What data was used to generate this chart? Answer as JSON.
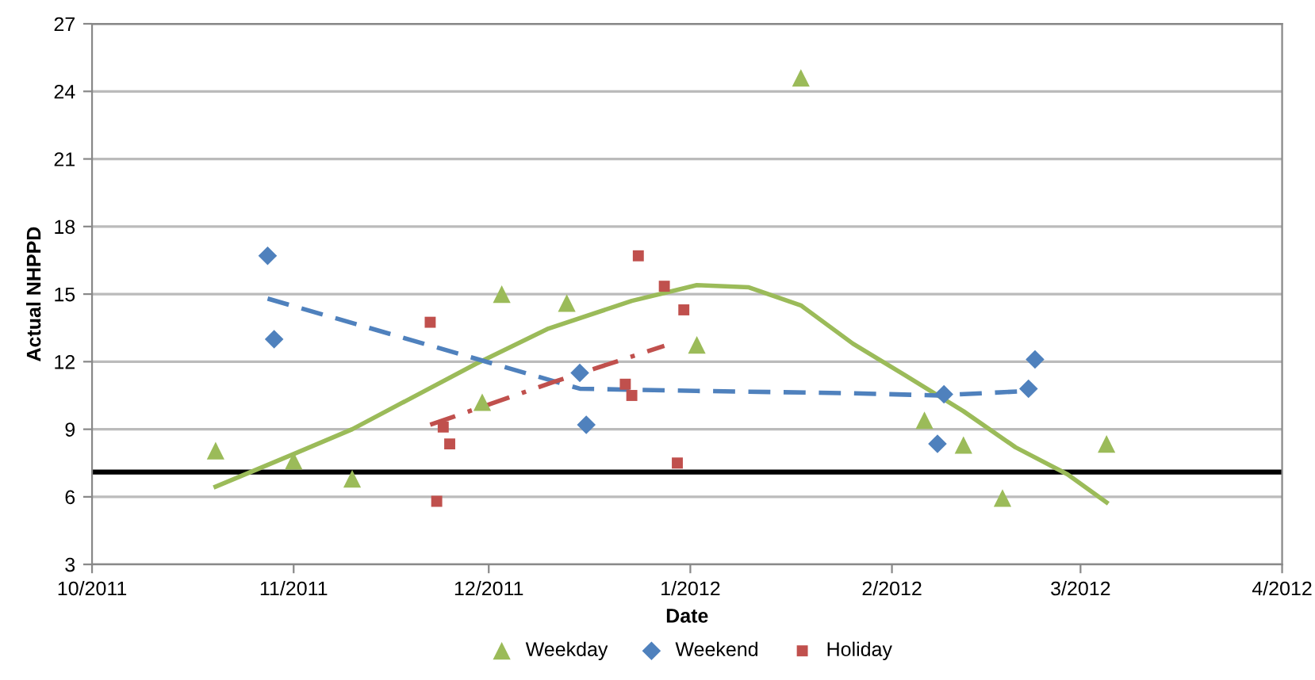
{
  "chart_data": {
    "type": "scatter",
    "xlabel": "Date",
    "ylabel": "Actual NHPPD",
    "xlim": [
      "2011-10-01",
      "2012-04-01"
    ],
    "xticks": [
      {
        "value": "2011-10-01",
        "label": "10/2011"
      },
      {
        "value": "2011-11-01",
        "label": "11/2011"
      },
      {
        "value": "2011-12-01",
        "label": "12/2011"
      },
      {
        "value": "2012-01-01",
        "label": "1/2012"
      },
      {
        "value": "2012-02-01",
        "label": "2/2012"
      },
      {
        "value": "2012-03-01",
        "label": "3/2012"
      },
      {
        "value": "2012-04-01",
        "label": "4/2012"
      }
    ],
    "ylim": [
      3,
      27
    ],
    "yticks": [
      3,
      6,
      9,
      12,
      15,
      18,
      21,
      24,
      27
    ],
    "grid": "y",
    "legend": "bottom",
    "ref_lines": [
      {
        "axis": "y",
        "value": 7.1,
        "label": null,
        "color": "#000000",
        "line_style": "solid"
      }
    ],
    "series": [
      {
        "name": "Weekday",
        "color": "#9bbb59",
        "marker": "triangle",
        "x": [
          "2011-10-20",
          "2011-11-01",
          "2011-11-10",
          "2011-11-30",
          "2011-12-03",
          "2011-12-13",
          "2012-01-02",
          "2012-01-18",
          "2012-02-06",
          "2012-02-12",
          "2012-02-18",
          "2012-03-05"
        ],
        "values": [
          8.05,
          7.6,
          6.8,
          10.2,
          15.0,
          14.6,
          12.75,
          24.6,
          9.4,
          8.3,
          5.95,
          8.35
        ]
      },
      {
        "name": "Weekend",
        "color": "#4f81bd",
        "marker": "diamond",
        "x": [
          "2011-10-28",
          "2011-10-29",
          "2011-12-15",
          "2011-12-16",
          "2012-02-08",
          "2012-02-09",
          "2012-02-22",
          "2012-02-23"
        ],
        "values": [
          16.7,
          13.0,
          11.5,
          9.2,
          8.35,
          10.55,
          10.8,
          12.1
        ]
      },
      {
        "name": "Holiday",
        "color": "#c0504d",
        "marker": "square",
        "x": [
          "2011-11-22",
          "2011-11-23",
          "2011-11-24",
          "2011-11-25",
          "2011-12-22",
          "2011-12-23",
          "2011-12-24",
          "2011-12-28",
          "2011-12-30",
          "2011-12-31"
        ],
        "values": [
          13.75,
          5.8,
          9.1,
          8.35,
          11.0,
          10.5,
          16.7,
          15.35,
          7.5,
          14.3
        ]
      },
      {
        "type": "line",
        "color": "#9bbb59",
        "line_style": "solid",
        "marker": "none",
        "x": [
          "2011-10-20",
          "2011-11-01",
          "2011-11-10",
          "2011-11-29",
          "2011-12-10",
          "2011-12-23",
          "2012-01-02",
          "2012-01-10",
          "2012-01-18",
          "2012-01-26",
          "2012-02-03",
          "2012-02-12",
          "2012-02-20",
          "2012-02-28",
          "2012-03-05"
        ],
        "values": [
          6.45,
          7.9,
          9.0,
          11.9,
          13.45,
          14.7,
          15.4,
          15.3,
          14.5,
          12.8,
          11.4,
          9.8,
          8.2,
          7.0,
          5.75
        ]
      },
      {
        "type": "line",
        "color": "#4f81bd",
        "line_style": "dashed",
        "marker": "none",
        "x": [
          "2011-10-28",
          "2011-12-15",
          "2012-01-02",
          "2012-01-26",
          "2012-02-08",
          "2012-02-22"
        ],
        "values": [
          14.8,
          10.8,
          10.7,
          10.6,
          10.5,
          10.7
        ]
      },
      {
        "type": "line",
        "color": "#c0504d",
        "line_style": "dashdot",
        "marker": "none",
        "x": [
          "2011-11-22",
          "2011-12-11",
          "2011-12-28"
        ],
        "values": [
          9.2,
          11.1,
          12.7
        ]
      }
    ]
  }
}
